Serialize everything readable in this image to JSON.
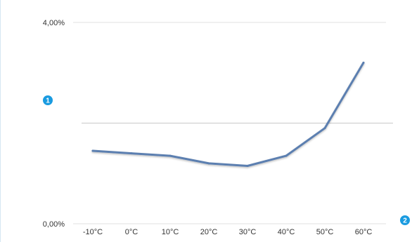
{
  "chart_data": {
    "type": "line",
    "categories": [
      "-10°C",
      "0°C",
      "10°C",
      "20°C",
      "30°C",
      "40°C",
      "50°C",
      "60°C"
    ],
    "series": [
      {
        "values": [
          1.45,
          1.4,
          1.35,
          1.2,
          1.15,
          1.35,
          1.9,
          3.2
        ]
      }
    ],
    "y_ticks": [
      "0,00%",
      "4,00%"
    ],
    "ylim": [
      0,
      4
    ],
    "reference_line": 2.0,
    "line_color": "#5b7fb0",
    "grid_color": "#e2e2e2",
    "reference_line_color": "#c8c8c8"
  },
  "callouts": [
    {
      "number": "1",
      "color": "#1a9be0"
    },
    {
      "number": "2",
      "color": "#1a9be0"
    }
  ]
}
